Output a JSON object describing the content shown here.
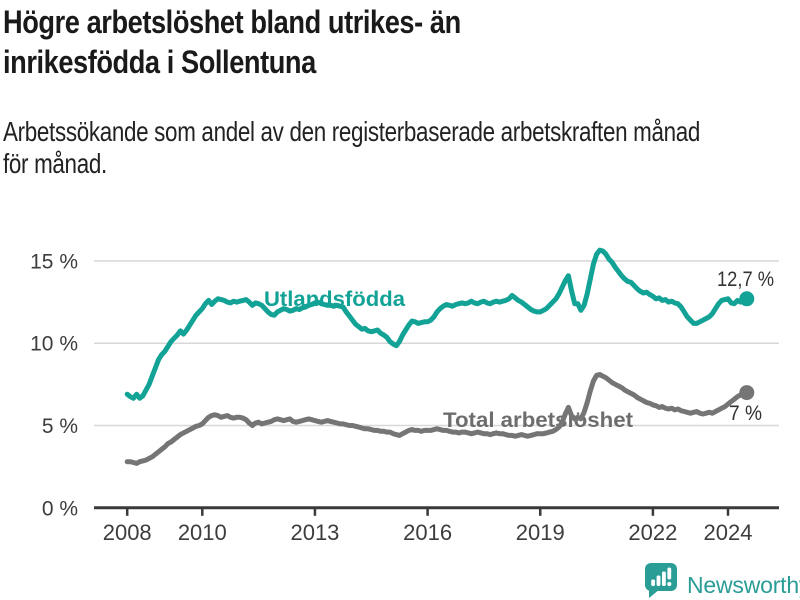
{
  "title": {
    "line1": "Högre arbetslöshet bland utrikes- än",
    "line2": "inrikesfödda i Sollentuna"
  },
  "subtitle": {
    "line1": "Arbetssökande som andel av den registerbaserade arbetskraften månad",
    "line2": "för månad."
  },
  "branding": {
    "name": "Newsworthy",
    "icon": "bar-chart-speech-bubble-icon",
    "color": "#2a9d97"
  },
  "chart_data": {
    "type": "line",
    "title": "Högre arbetslöshet bland utrikes- än inrikesfödda i Sollentuna",
    "subtitle": "Arbetssökande som andel av den registerbaserade arbetskraften månad för månad.",
    "x_start_year": 2008,
    "x_interval": "monthly",
    "x_end": 2024.5,
    "xticks": [
      2008,
      2010,
      2013,
      2016,
      2019,
      2022,
      2024
    ],
    "ytick_values": [
      0,
      5,
      10,
      15
    ],
    "ytick_labels": [
      "0 %",
      "5 %",
      "10 %",
      "15 %"
    ],
    "ylim": [
      0,
      16.6
    ],
    "grid": "horizontal",
    "colors": {
      "grid": "#d8d8d8",
      "axis": "#3a3a3a",
      "axis_text": "#3d3d3d",
      "value_label": "#333333"
    },
    "series": [
      {
        "name": "Utlandsfödda",
        "line_color": "#12a296",
        "label_color": "#12a296",
        "end_label": "12,7 %",
        "end_value": 12.7,
        "values": [
          6.9,
          6.75,
          6.65,
          6.9,
          6.65,
          6.8,
          7.15,
          7.5,
          8.0,
          8.5,
          9.0,
          9.3,
          9.5,
          9.8,
          10.1,
          10.3,
          10.5,
          10.75,
          10.55,
          10.8,
          11.1,
          11.4,
          11.7,
          11.9,
          12.1,
          12.4,
          12.6,
          12.35,
          12.55,
          12.7,
          12.65,
          12.6,
          12.5,
          12.45,
          12.55,
          12.5,
          12.55,
          12.6,
          12.65,
          12.5,
          12.3,
          12.45,
          12.4,
          12.3,
          12.1,
          11.9,
          11.75,
          11.7,
          11.9,
          12.0,
          12.1,
          12.05,
          11.95,
          12.0,
          12.1,
          12.05,
          12.15,
          12.2,
          12.3,
          12.35,
          12.45,
          12.5,
          12.4,
          12.35,
          12.3,
          12.3,
          12.25,
          12.3,
          12.25,
          12.2,
          11.9,
          11.65,
          11.4,
          11.15,
          11.0,
          10.85,
          10.9,
          10.75,
          10.7,
          10.75,
          10.8,
          10.6,
          10.5,
          10.35,
          10.1,
          9.95,
          9.85,
          10.1,
          10.5,
          10.8,
          11.1,
          11.35,
          11.3,
          11.2,
          11.25,
          11.3,
          11.3,
          11.4,
          11.6,
          11.9,
          12.1,
          12.25,
          12.35,
          12.3,
          12.25,
          12.35,
          12.4,
          12.45,
          12.4,
          12.45,
          12.55,
          12.45,
          12.4,
          12.5,
          12.55,
          12.45,
          12.4,
          12.5,
          12.55,
          12.5,
          12.55,
          12.6,
          12.7,
          12.9,
          12.75,
          12.6,
          12.5,
          12.35,
          12.2,
          12.05,
          11.95,
          11.9,
          11.9,
          12.0,
          12.1,
          12.3,
          12.5,
          12.7,
          13.0,
          13.4,
          13.8,
          14.1,
          13.2,
          12.4,
          12.4,
          12.0,
          12.3,
          13.0,
          13.9,
          14.8,
          15.4,
          15.65,
          15.6,
          15.4,
          15.1,
          14.9,
          14.6,
          14.35,
          14.1,
          13.9,
          13.75,
          13.7,
          13.5,
          13.3,
          13.15,
          13.05,
          13.1,
          12.95,
          12.85,
          12.7,
          12.75,
          12.6,
          12.65,
          12.5,
          12.55,
          12.45,
          12.4,
          12.2,
          11.9,
          11.6,
          11.4,
          11.2,
          11.2,
          11.3,
          11.4,
          11.5,
          11.6,
          11.8,
          12.1,
          12.4,
          12.6,
          12.65,
          12.7,
          12.45,
          12.4,
          12.6,
          12.5,
          12.6,
          12.7
        ]
      },
      {
        "name": "Total arbetslöshet",
        "line_color": "#757575",
        "label_color": "#6d6d6d",
        "end_label": "7 %",
        "end_value": 7.0,
        "values": [
          2.8,
          2.8,
          2.75,
          2.7,
          2.8,
          2.85,
          2.9,
          3.0,
          3.1,
          3.25,
          3.4,
          3.55,
          3.7,
          3.9,
          4.0,
          4.15,
          4.3,
          4.45,
          4.55,
          4.65,
          4.75,
          4.85,
          4.95,
          5.0,
          5.1,
          5.3,
          5.5,
          5.6,
          5.65,
          5.6,
          5.5,
          5.55,
          5.6,
          5.5,
          5.45,
          5.5,
          5.5,
          5.45,
          5.35,
          5.15,
          5.0,
          5.15,
          5.2,
          5.1,
          5.15,
          5.2,
          5.25,
          5.35,
          5.4,
          5.35,
          5.3,
          5.35,
          5.4,
          5.25,
          5.2,
          5.25,
          5.3,
          5.35,
          5.4,
          5.35,
          5.3,
          5.25,
          5.2,
          5.25,
          5.3,
          5.25,
          5.2,
          5.15,
          5.1,
          5.1,
          5.05,
          5.0,
          5.0,
          4.95,
          4.9,
          4.85,
          4.8,
          4.8,
          4.75,
          4.7,
          4.7,
          4.65,
          4.65,
          4.6,
          4.6,
          4.5,
          4.45,
          4.4,
          4.5,
          4.6,
          4.7,
          4.75,
          4.7,
          4.7,
          4.65,
          4.7,
          4.7,
          4.7,
          4.75,
          4.8,
          4.75,
          4.7,
          4.7,
          4.65,
          4.6,
          4.6,
          4.55,
          4.6,
          4.6,
          4.55,
          4.5,
          4.55,
          4.6,
          4.55,
          4.5,
          4.5,
          4.45,
          4.5,
          4.55,
          4.5,
          4.5,
          4.45,
          4.4,
          4.4,
          4.35,
          4.4,
          4.45,
          4.4,
          4.35,
          4.4,
          4.45,
          4.5,
          4.5,
          4.5,
          4.55,
          4.6,
          4.65,
          4.75,
          4.9,
          5.2,
          5.7,
          6.1,
          5.6,
          5.4,
          5.5,
          5.4,
          5.8,
          6.4,
          7.1,
          7.7,
          8.05,
          8.1,
          8.0,
          7.9,
          7.75,
          7.6,
          7.5,
          7.4,
          7.3,
          7.15,
          7.05,
          6.95,
          6.85,
          6.7,
          6.6,
          6.5,
          6.4,
          6.35,
          6.25,
          6.2,
          6.1,
          6.15,
          6.05,
          6.0,
          6.05,
          5.95,
          6.0,
          5.9,
          5.85,
          5.8,
          5.75,
          5.8,
          5.85,
          5.75,
          5.7,
          5.75,
          5.8,
          5.75,
          5.85,
          5.95,
          6.05,
          6.15,
          6.3,
          6.45,
          6.6,
          6.75,
          6.85,
          6.9,
          7.0
        ]
      }
    ]
  }
}
